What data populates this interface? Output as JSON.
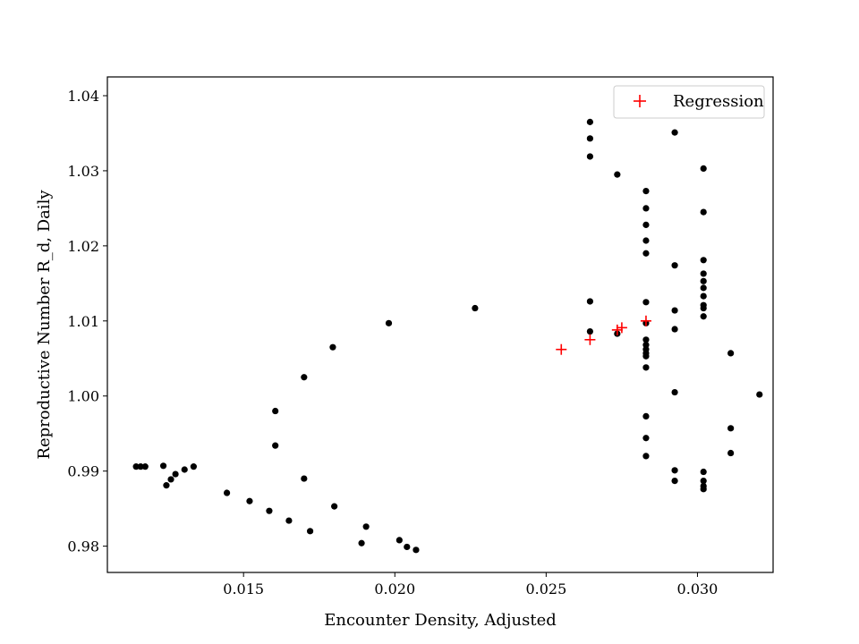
{
  "chart_data": {
    "type": "scatter",
    "title": "",
    "xlabel": "Encounter Density, Adjusted",
    "ylabel": "Reproductive Number R_d, Daily",
    "xlim": [
      0.0105,
      0.0325
    ],
    "ylim": [
      0.9765,
      1.0425
    ],
    "xticks": [
      0.015,
      0.02,
      0.025,
      0.03
    ],
    "xtick_labels": [
      "0.015",
      "0.020",
      "0.025",
      "0.030"
    ],
    "yticks": [
      0.98,
      0.99,
      1.0,
      1.01,
      1.02,
      1.03,
      1.04
    ],
    "ytick_labels": [
      "0.98",
      "0.99",
      "1.00",
      "1.01",
      "1.02",
      "1.03",
      "1.04"
    ],
    "grid": false,
    "legend": {
      "placement": "top-right",
      "entries": [
        "Regression"
      ]
    },
    "series": [
      {
        "name": "",
        "marker": "dot",
        "color": "#000000",
        "points": [
          [
            0.01145,
            0.9906
          ],
          [
            0.0116,
            0.9906
          ],
          [
            0.01175,
            0.9906
          ],
          [
            0.01235,
            0.9907
          ],
          [
            0.01245,
            0.9881
          ],
          [
            0.0126,
            0.9889
          ],
          [
            0.01275,
            0.9896
          ],
          [
            0.01305,
            0.9902
          ],
          [
            0.01335,
            0.9906
          ],
          [
            0.01445,
            0.9871
          ],
          [
            0.0152,
            0.986
          ],
          [
            0.01585,
            0.9847
          ],
          [
            0.0165,
            0.9834
          ],
          [
            0.0172,
            0.982
          ],
          [
            0.018,
            0.9853
          ],
          [
            0.0189,
            0.9804
          ],
          [
            0.01905,
            0.9826
          ],
          [
            0.02015,
            0.9808
          ],
          [
            0.0204,
            0.9799
          ],
          [
            0.0207,
            0.9795
          ],
          [
            0.01605,
            0.998
          ],
          [
            0.01605,
            0.9934
          ],
          [
            0.017,
            1.0025
          ],
          [
            0.017,
            0.989
          ],
          [
            0.01795,
            1.0065
          ],
          [
            0.0198,
            1.0097
          ],
          [
            0.02265,
            1.0117
          ],
          [
            0.02645,
            1.0365
          ],
          [
            0.02645,
            1.0343
          ],
          [
            0.02645,
            1.0319
          ],
          [
            0.02645,
            1.0126
          ],
          [
            0.02645,
            1.0086
          ],
          [
            0.02735,
            1.0409
          ],
          [
            0.02735,
            1.0404
          ],
          [
            0.02735,
            1.0387
          ],
          [
            0.02735,
            1.0295
          ],
          [
            0.02735,
            1.0083
          ],
          [
            0.0283,
            1.0273
          ],
          [
            0.0283,
            1.025
          ],
          [
            0.0283,
            1.0228
          ],
          [
            0.0283,
            1.0207
          ],
          [
            0.0283,
            1.019
          ],
          [
            0.0283,
            1.0125
          ],
          [
            0.0283,
            1.0097
          ],
          [
            0.0283,
            1.0075
          ],
          [
            0.0283,
            1.0068
          ],
          [
            0.0283,
            1.0062
          ],
          [
            0.0283,
            1.0057
          ],
          [
            0.0283,
            1.0053
          ],
          [
            0.0283,
            1.0038
          ],
          [
            0.0283,
            0.9973
          ],
          [
            0.0283,
            0.9944
          ],
          [
            0.0283,
            0.992
          ],
          [
            0.02925,
            1.0351
          ],
          [
            0.02925,
            1.0174
          ],
          [
            0.02925,
            1.0114
          ],
          [
            0.02925,
            1.0089
          ],
          [
            0.02925,
            1.0005
          ],
          [
            0.02925,
            0.9901
          ],
          [
            0.02925,
            0.9887
          ],
          [
            0.0302,
            1.0303
          ],
          [
            0.0302,
            1.0245
          ],
          [
            0.0302,
            1.0181
          ],
          [
            0.0302,
            1.0163
          ],
          [
            0.0302,
            1.0153
          ],
          [
            0.0302,
            1.0144
          ],
          [
            0.0302,
            1.0133
          ],
          [
            0.0302,
            1.0121
          ],
          [
            0.0302,
            1.0117
          ],
          [
            0.0302,
            1.0106
          ],
          [
            0.0302,
            0.9899
          ],
          [
            0.0302,
            0.9887
          ],
          [
            0.0302,
            0.988
          ],
          [
            0.0302,
            0.9876
          ],
          [
            0.0311,
            1.0057
          ],
          [
            0.0311,
            0.9957
          ],
          [
            0.0311,
            0.9924
          ],
          [
            0.03205,
            1.0002
          ]
        ]
      },
      {
        "name": "Regression",
        "marker": "plus",
        "color": "#ff0000",
        "points": [
          [
            0.0255,
            1.0062
          ],
          [
            0.02645,
            1.0075
          ],
          [
            0.02735,
            1.0088
          ],
          [
            0.0275,
            1.0091
          ],
          [
            0.0283,
            1.01
          ]
        ]
      }
    ]
  }
}
